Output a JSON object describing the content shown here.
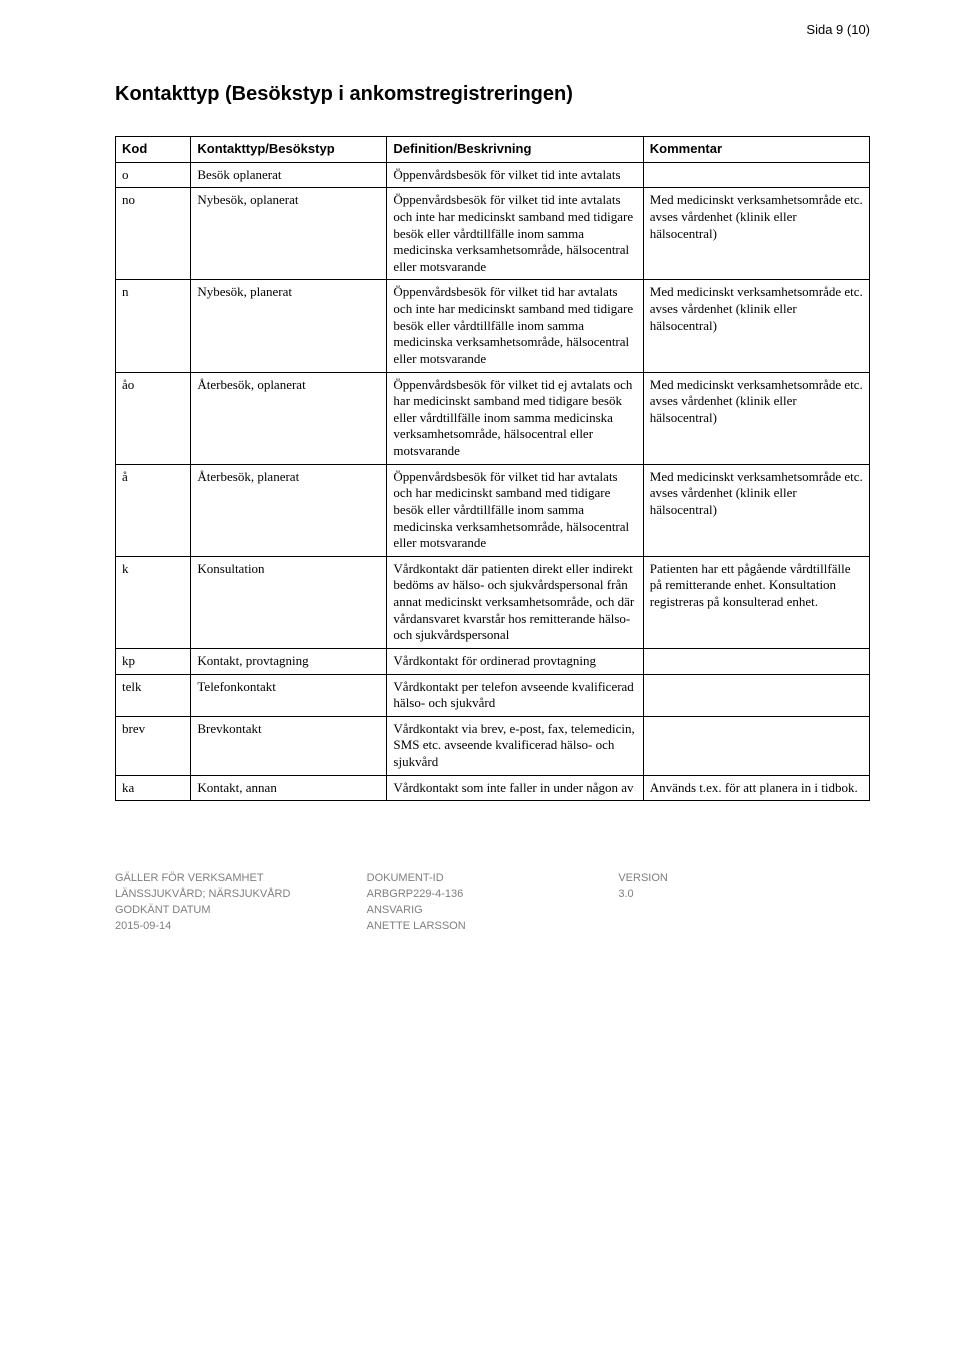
{
  "page_label": "Sida 9 (10)",
  "section_title": "Kontakttyp (Besökstyp i ankomstregistreringen)",
  "headers": {
    "c1": "Kod",
    "c2": "Kontakttyp/Besökstyp",
    "c3": "Definition/Beskrivning",
    "c4": "Kommentar"
  },
  "rows": [
    {
      "kod": "o",
      "typ": "Besök oplanerat",
      "def": "Öppenvårdsbesök för vilket tid inte avtalats",
      "kom": ""
    },
    {
      "kod": "no",
      "typ": "Nybesök, oplanerat",
      "def": "Öppenvårdsbesök för vilket tid inte avtalats och inte har medicinskt samband med tidigare besök eller vårdtillfälle inom samma medicinska verksamhetsområde, hälsocentral eller motsvarande",
      "kom": "Med medicinskt verksamhetsområde etc. avses vårdenhet (klinik eller hälsocentral)"
    },
    {
      "kod": "n",
      "typ": "Nybesök, planerat",
      "def": "Öppenvårdsbesök för vilket tid har avtalats och inte har medicinskt samband med tidigare besök eller vårdtillfälle inom samma medicinska verksamhetsområde, hälsocentral eller motsvarande",
      "kom": "Med medicinskt verksamhetsområde etc. avses vårdenhet (klinik eller hälsocentral)"
    },
    {
      "kod": "åo",
      "typ": "Återbesök, oplanerat",
      "def": "Öppenvårdsbesök för vilket tid ej avtalats och har medicinskt samband med tidigare besök eller vårdtillfälle inom samma medicinska verksamhetsområde, hälsocentral eller motsvarande",
      "kom": "Med medicinskt verksamhetsområde etc. avses vårdenhet (klinik eller hälsocentral)"
    },
    {
      "kod": "å",
      "typ": "Återbesök, planerat",
      "def": "Öppenvårdsbesök för vilket tid har avtalats och har medicinskt samband med tidigare besök eller vårdtillfälle inom samma medicinska verksamhetsområde, hälsocentral eller motsvarande",
      "kom": "Med medicinskt verksamhetsområde etc. avses vårdenhet (klinik eller hälsocentral)"
    },
    {
      "kod": "k",
      "typ": "Konsultation",
      "def": "Vårdkontakt där patienten direkt eller indirekt bedöms av hälso- och sjukvårdspersonal från annat medicinskt verksamhetsområde, och där vårdansvaret kvarstår hos remitterande hälso- och sjukvårdspersonal",
      "kom": "Patienten har ett pågående vårdtillfälle på remitterande enhet. Konsultation registreras på konsulterad enhet."
    },
    {
      "kod": "kp",
      "typ": "Kontakt, provtagning",
      "def": "Vårdkontakt för ordinerad provtagning",
      "kom": ""
    },
    {
      "kod": "telk",
      "typ": "Telefonkontakt",
      "def": "Vårdkontakt per telefon avseende kvalificerad hälso- och sjukvård",
      "kom": ""
    },
    {
      "kod": "brev",
      "typ": "Brevkontakt",
      "def": "Vårdkontakt via brev, e-post, fax, telemedicin, SMS etc. avseende kvalificerad hälso- och sjukvård",
      "kom": ""
    },
    {
      "kod": "ka",
      "typ": "Kontakt, annan",
      "def": "Vårdkontakt som inte faller in under någon av",
      "kom": "Används t.ex. för att planera in i tidbok."
    }
  ],
  "footer": {
    "l1": "GÄLLER FÖR VERKSAMHET",
    "v1": "LÄNSSJUKVÅRD; NÄRSJUKVÅRD",
    "l2": "DOKUMENT-ID",
    "v2": "ARBGRP229-4-136",
    "l3": "VERSION",
    "v3": "3.0",
    "l4": "GODKÄNT DATUM",
    "v4": "2015-09-14",
    "l5": "ANSVARIG",
    "v5": "ANETTE LARSSON"
  }
}
